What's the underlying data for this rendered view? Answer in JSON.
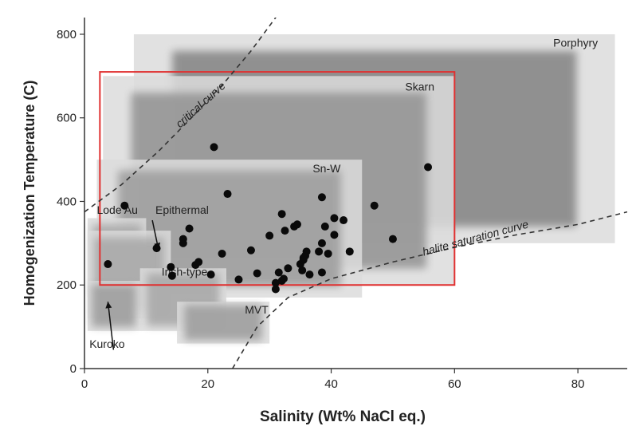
{
  "chart_data": {
    "type": "scatter",
    "xlabel": "Salinity (Wt% NaCl eq.)",
    "ylabel": "Homogenization Temperature (C)",
    "xlim": [
      0,
      88
    ],
    "ylim": [
      0,
      840
    ],
    "xticks": [
      0,
      20,
      40,
      60,
      80
    ],
    "yticks": [
      0,
      200,
      400,
      600,
      800
    ],
    "grid": false,
    "highlight_box": {
      "x": [
        2.5,
        60
      ],
      "y": [
        200,
        710
      ],
      "color": "#e03030"
    },
    "regions": [
      {
        "name": "Porphyry",
        "x": [
          8,
          86
        ],
        "y": [
          300,
          800
        ],
        "shade": 0.62
      },
      {
        "name": "Skarn",
        "x": [
          3,
          60
        ],
        "y": [
          200,
          700
        ],
        "shade": 0.55
      },
      {
        "name": "Sn-W",
        "x": [
          2,
          45
        ],
        "y": [
          170,
          500
        ],
        "shade": 0.5
      },
      {
        "name": "Lode Au",
        "x": [
          0.5,
          10
        ],
        "y": [
          170,
          360
        ],
        "shade": 0.45
      },
      {
        "name": "Epithermal",
        "x": [
          0.5,
          14
        ],
        "y": [
          120,
          330
        ],
        "shade": 0.45
      },
      {
        "name": "Irish-type",
        "x": [
          9,
          23
        ],
        "y": [
          90,
          240
        ],
        "shade": 0.45
      },
      {
        "name": "MVT",
        "x": [
          15,
          30
        ],
        "y": [
          60,
          160
        ],
        "shade": 0.5
      },
      {
        "name": "Kuroko",
        "x": [
          0.5,
          9
        ],
        "y": [
          90,
          210
        ],
        "shade": 0.5
      }
    ],
    "labels": [
      {
        "text": "Porphyry",
        "x": 76,
        "y": 770
      },
      {
        "text": "Skarn",
        "x": 52,
        "y": 665
      },
      {
        "text": "Sn-W",
        "x": 37,
        "y": 470
      },
      {
        "text": "Lode Au",
        "x": 2,
        "y": 370
      },
      {
        "text": "Epithermal",
        "x": 11.5,
        "y": 370
      },
      {
        "text": "Irish-type",
        "x": 12.5,
        "y": 222
      },
      {
        "text": "MVT",
        "x": 26,
        "y": 132
      },
      {
        "text": "Kuroko",
        "x": 0.8,
        "y": 50
      }
    ],
    "curves": [
      {
        "name": "critical curve",
        "label_pos": {
          "x": 15.5,
          "y": 575
        },
        "label_rotate": -42,
        "points": [
          [
            0,
            375
          ],
          [
            6,
            440
          ],
          [
            12,
            520
          ],
          [
            18,
            610
          ],
          [
            23,
            690
          ],
          [
            27,
            760
          ],
          [
            31,
            840
          ],
          [
            32,
            870
          ]
        ]
      },
      {
        "name": "halite saturation curve",
        "label_pos": {
          "x": 55,
          "y": 270
        },
        "label_rotate": -15,
        "points": [
          [
            24,
            0
          ],
          [
            28,
            100
          ],
          [
            33,
            170
          ],
          [
            40,
            215
          ],
          [
            50,
            255
          ],
          [
            60,
            290
          ],
          [
            70,
            320
          ],
          [
            80,
            345
          ],
          [
            88,
            375
          ]
        ]
      }
    ],
    "arrows": [
      {
        "from": [
          11,
          355
        ],
        "to": [
          12,
          285
        ]
      },
      {
        "from": [
          4.7,
          45
        ],
        "to": [
          3.8,
          160
        ]
      }
    ],
    "points": {
      "x": [
        3.8,
        6.5,
        11.7,
        14,
        14.2,
        16,
        16,
        17,
        18,
        18.5,
        20.5,
        21,
        22.3,
        23.2,
        25,
        27,
        28,
        30,
        31,
        31,
        31.5,
        32,
        32,
        32.3,
        32.5,
        33,
        34,
        34.5,
        35,
        35.3,
        35.5,
        35.5,
        35.8,
        36,
        36.5,
        38,
        38.5,
        38.5,
        38.5,
        39,
        39.5,
        40.5,
        40.5,
        42,
        43,
        47,
        50,
        55.7
      ],
      "y": [
        250,
        390,
        288,
        243,
        222,
        300,
        310,
        335,
        248,
        255,
        225,
        530,
        275,
        418,
        213,
        283,
        228,
        318,
        190,
        205,
        230,
        210,
        370,
        215,
        330,
        240,
        340,
        345,
        250,
        235,
        260,
        265,
        270,
        280,
        225,
        280,
        230,
        300,
        410,
        340,
        275,
        320,
        360,
        355,
        280,
        390,
        310,
        482
      ]
    }
  }
}
